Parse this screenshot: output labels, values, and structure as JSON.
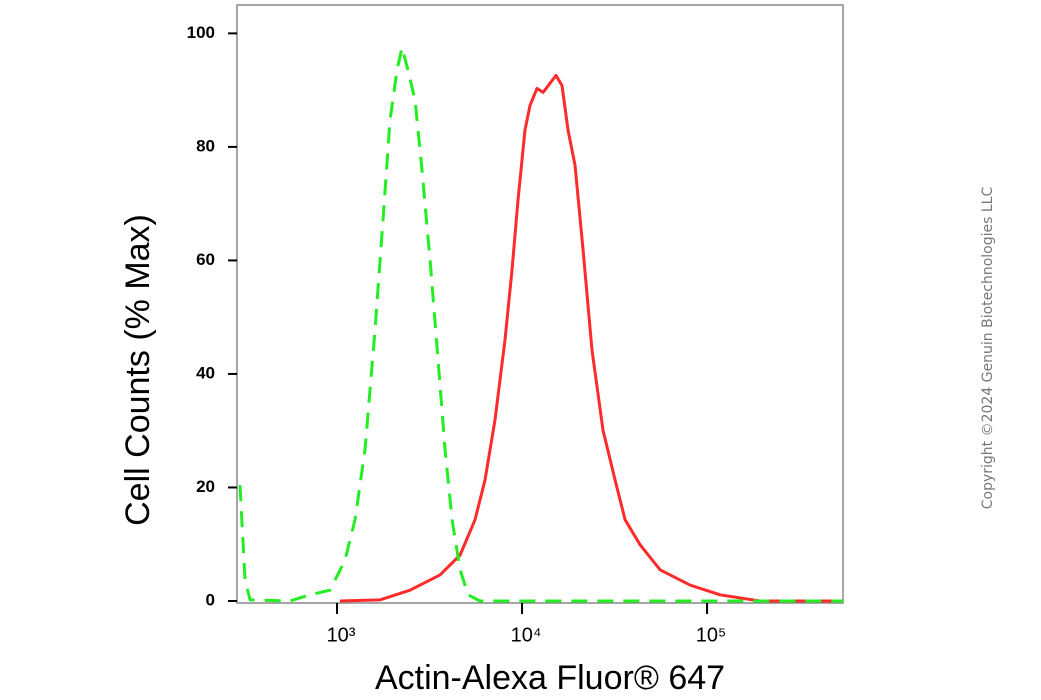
{
  "chart_data": {
    "type": "line",
    "y_label": "Cell Counts (% Max)",
    "x_label": "Actin-Alexa Fluor® 647",
    "copyright": "Copyright ©2024 Genuin Biotechnologies LLC",
    "xscale": "log",
    "xlim": [
      288,
      543000
    ],
    "ylim": [
      0,
      105
    ],
    "xticks": [
      {
        "value": 1000,
        "label": "10³"
      },
      {
        "value": 10000,
        "label": "10⁴"
      },
      {
        "value": 100000,
        "label": "10⁵"
      }
    ],
    "yticks": [
      0,
      20,
      40,
      60,
      80,
      100
    ],
    "series": [
      {
        "color": "#ff2a2a",
        "dash": false,
        "x": [
          1038,
          1708,
          2481,
          3604,
          4624,
          5570,
          6310,
          7145,
          8090,
          8830,
          9510,
          10380,
          11040,
          12040,
          13000,
          14170,
          15270,
          16450,
          17730,
          19330,
          21380,
          23900,
          27400,
          31830,
          36060,
          43460,
          55720,
          80910,
          117500,
          193300,
          543000
        ],
        "values": [
          0,
          0.2,
          1.9,
          4.6,
          8.1,
          14.3,
          21.3,
          31.9,
          46,
          58.3,
          70.6,
          83,
          87.3,
          90.3,
          89.6,
          91.2,
          92.6,
          90.8,
          82.9,
          76.8,
          61.8,
          44.2,
          30.1,
          21.3,
          14.3,
          9.9,
          5.5,
          2.8,
          1.1,
          0,
          0
        ]
      },
      {
        "color": "#22ee22",
        "dash": true,
        "x": [
          299,
          318,
          339,
          557,
          714,
          916,
          1105,
          1251,
          1417,
          1604,
          1773,
          1933,
          2109,
          2245,
          2419,
          2641,
          2879,
          3183,
          3517,
          3837,
          4186,
          4626,
          5110,
          5929,
          543000
        ],
        "values": [
          20.4,
          3.7,
          0.2,
          0,
          1.1,
          1.9,
          7.2,
          14.3,
          26.6,
          47.7,
          67.1,
          84.7,
          93.5,
          97.5,
          93.5,
          88.2,
          75.9,
          60,
          42.4,
          26.6,
          14.3,
          5.5,
          1.1,
          0,
          0
        ]
      }
    ]
  }
}
